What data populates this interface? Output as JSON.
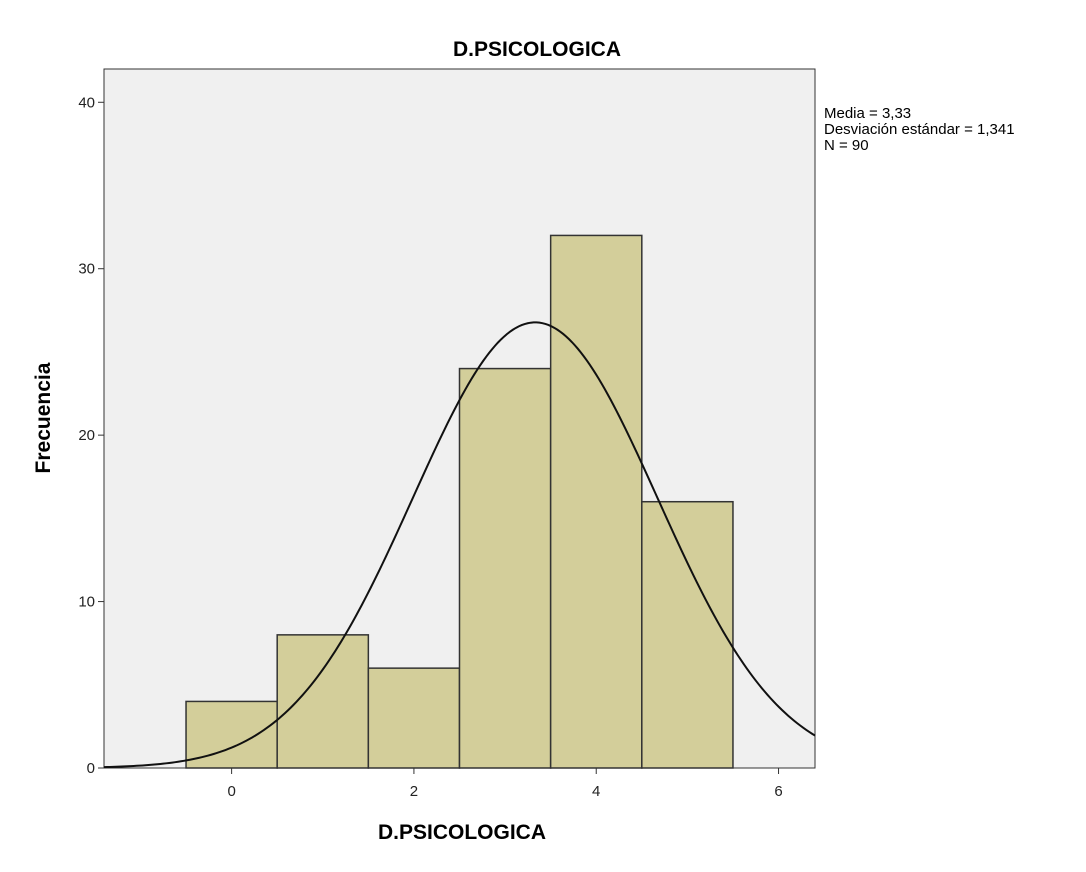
{
  "chart_data": {
    "type": "bar",
    "subtype": "histogram",
    "title": "D.PSICOLOGICA",
    "xlabel": "D.PSICOLOGICA",
    "ylabel": "Frecuencia",
    "xlim": [
      -1.4,
      6.4
    ],
    "ylim": [
      0,
      42
    ],
    "x_ticks": [
      0,
      2,
      4,
      6
    ],
    "y_ticks": [
      0,
      10,
      20,
      30,
      40
    ],
    "bins": [
      {
        "center": 0,
        "value": 4
      },
      {
        "center": 1,
        "value": 8
      },
      {
        "center": 2,
        "value": 6
      },
      {
        "center": 3,
        "value": 24
      },
      {
        "center": 4,
        "value": 32
      },
      {
        "center": 5,
        "value": 16
      }
    ],
    "bin_width": 1,
    "normal_curve": {
      "mean": 3.33,
      "sd": 1.341,
      "n": 90
    },
    "stats": [
      "Media = 3,33",
      "Desviación estándar = 1,341",
      "N = 90"
    ],
    "colors": {
      "plot_background": "#f0f0f0",
      "bar_fill": "#d3ce9a",
      "bar_stroke": "#333333",
      "curve": "#111111"
    }
  }
}
